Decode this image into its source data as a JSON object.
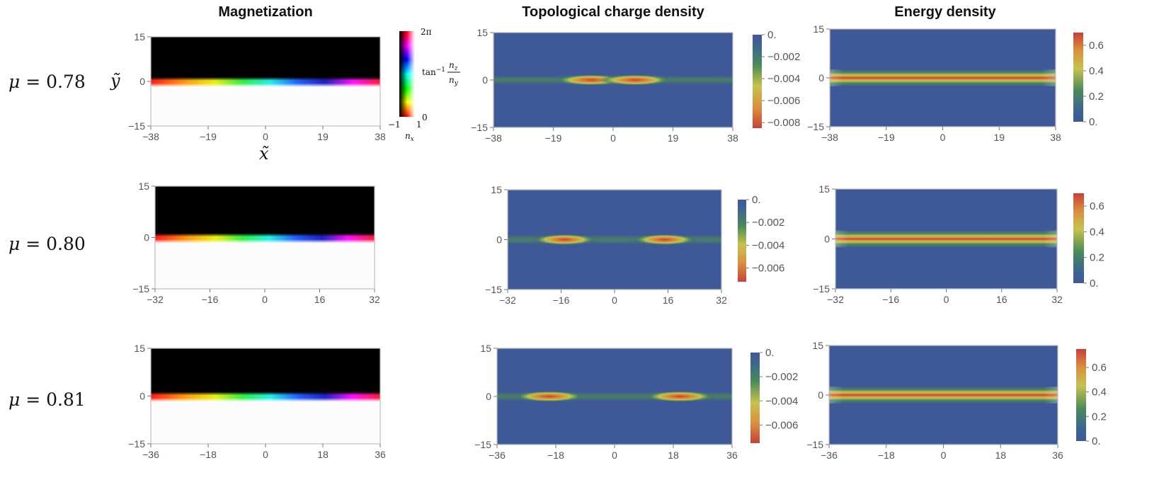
{
  "column_titles": [
    "Magnetization",
    "Topological charge density",
    "Energy density"
  ],
  "row_labels": [
    {
      "symbol": "μ",
      "rest": " = 0.78"
    },
    {
      "symbol": "μ",
      "rest": " = 0.80"
    },
    {
      "symbol": "μ",
      "rest": " = 0.81"
    }
  ],
  "axis_symbols": {
    "x": "x̃",
    "y": "ỹ"
  },
  "hue_legend": {
    "top": "2π",
    "bottom": "0",
    "left": "−1",
    "right": "1",
    "xlabel": "n",
    "xsub": "x",
    "side": "tan",
    "sup": "−1",
    "num": "n",
    "numsub": "z",
    "den": "n",
    "densub": "y"
  },
  "colors": {
    "background": "#ffffff",
    "field_blue": "#3f5897",
    "frame": "#bfbfbf",
    "tick_text": "#555555"
  },
  "chart_data": [
    {
      "type": "heatmap",
      "title": "Magnetization",
      "row": "μ = 0.78",
      "x_ticks": [
        -38,
        -19,
        0,
        19,
        38
      ],
      "y_ticks": [
        15,
        0,
        -15
      ],
      "xlim": [
        -38,
        38
      ],
      "ylim": [
        -15,
        15
      ]
    },
    {
      "type": "heatmap",
      "title": "Topological charge density",
      "row": "μ = 0.78",
      "x_ticks": [
        -38,
        -19,
        0,
        19,
        38
      ],
      "y_ticks": [
        15,
        0,
        -15
      ],
      "xlim": [
        -38,
        38
      ],
      "ylim": [
        -15,
        15
      ],
      "colorbar_ticks": [
        "0.",
        "−0.002",
        "−0.004",
        "−0.006",
        "−0.008"
      ],
      "colorbar_range": [
        -0.0085,
        0
      ],
      "peaks_x": [
        -7,
        7
      ]
    },
    {
      "type": "heatmap",
      "title": "Energy density",
      "row": "μ = 0.78",
      "x_ticks": [
        -38,
        -19,
        0,
        19,
        38
      ],
      "y_ticks": [
        15,
        0,
        -15
      ],
      "xlim": [
        -38,
        38
      ],
      "ylim": [
        -15,
        15
      ],
      "colorbar_ticks": [
        "0.6",
        "0.4",
        "0.2",
        "0."
      ],
      "colorbar_range": [
        0,
        0.7
      ]
    },
    {
      "type": "heatmap",
      "title": "Magnetization",
      "row": "μ = 0.80",
      "x_ticks": [
        -32,
        -16,
        0,
        16,
        32
      ],
      "y_ticks": [
        15,
        0,
        -15
      ],
      "xlim": [
        -32,
        32
      ],
      "ylim": [
        -15,
        15
      ]
    },
    {
      "type": "heatmap",
      "title": "Topological charge density",
      "row": "μ = 0.80",
      "x_ticks": [
        -32,
        -16,
        0,
        16,
        32
      ],
      "y_ticks": [
        15,
        0,
        -15
      ],
      "xlim": [
        -32,
        32
      ],
      "ylim": [
        -15,
        15
      ],
      "colorbar_ticks": [
        "0.",
        "−0.002",
        "−0.004",
        "−0.006"
      ],
      "colorbar_range": [
        -0.0072,
        0
      ],
      "peaks_x": [
        -15,
        15
      ]
    },
    {
      "type": "heatmap",
      "title": "Energy density",
      "row": "μ = 0.80",
      "x_ticks": [
        -32,
        -16,
        0,
        16,
        32
      ],
      "y_ticks": [
        15,
        0,
        -15
      ],
      "xlim": [
        -32,
        32
      ],
      "ylim": [
        -15,
        15
      ],
      "colorbar_ticks": [
        "0.6",
        "0.4",
        "0.2",
        "0."
      ],
      "colorbar_range": [
        0,
        0.7
      ]
    },
    {
      "type": "heatmap",
      "title": "Magnetization",
      "row": "μ = 0.81",
      "x_ticks": [
        -36,
        -18,
        0,
        18,
        36
      ],
      "y_ticks": [
        15,
        0,
        -15
      ],
      "xlim": [
        -36,
        36
      ],
      "ylim": [
        -15,
        15
      ]
    },
    {
      "type": "heatmap",
      "title": "Topological charge density",
      "row": "μ = 0.81",
      "x_ticks": [
        -36,
        -18,
        0,
        18,
        36
      ],
      "y_ticks": [
        15,
        0,
        -15
      ],
      "xlim": [
        -36,
        36
      ],
      "ylim": [
        -15,
        15
      ],
      "colorbar_ticks": [
        "0.",
        "−0.002",
        "−0.004",
        "−0.006"
      ],
      "colorbar_range": [
        -0.0075,
        0
      ],
      "peaks_x": [
        -20,
        20
      ]
    },
    {
      "type": "heatmap",
      "title": "Energy density",
      "row": "μ = 0.81",
      "x_ticks": [
        -36,
        -18,
        0,
        18,
        36
      ],
      "y_ticks": [
        15,
        0,
        -15
      ],
      "xlim": [
        -36,
        36
      ],
      "ylim": [
        -15,
        15
      ],
      "colorbar_ticks": [
        "0.6",
        "0.4",
        "0.2",
        "0."
      ],
      "colorbar_range": [
        0,
        0.75
      ]
    }
  ]
}
